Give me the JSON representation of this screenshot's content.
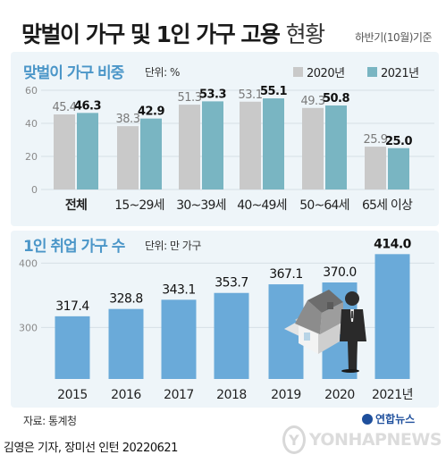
{
  "header": {
    "title_bold": "맞벌이 가구 및 1인 가구 고용",
    "title_light": "현황",
    "period_note": "하반기(10월)기준"
  },
  "section1": {
    "title": "맞벌이 가구 비중",
    "unit": "단위: %"
  },
  "section2": {
    "title": "1인 취업 가구 수",
    "unit": "단위: 만 가구"
  },
  "legend": {
    "items": [
      {
        "label": "2020년",
        "color": "#c9c9c9"
      },
      {
        "label": "2021년",
        "color": "#79b5c2"
      }
    ]
  },
  "footer": {
    "source": "자료: 통계청",
    "credit": "김영은 기자, 장미선 인턴  20220621",
    "logo_small": "연합뉴스",
    "watermark": "YONHAPNEWS"
  },
  "colors": {
    "series_2020": "#c9c9c9",
    "series_2021": "#79b5c2",
    "bar2": "#6aaad9",
    "accent_title": "#4b96c8"
  },
  "chart_data": [
    {
      "type": "bar",
      "title": "맞벌이 가구 비중",
      "unit": "%",
      "categories": [
        "전체",
        "15~29세",
        "30~39세",
        "40~49세",
        "50~64세",
        "65세 이상"
      ],
      "series": [
        {
          "name": "2020년",
          "values": [
            45.4,
            38.3,
            51.3,
            53.1,
            49.3,
            25.9
          ]
        },
        {
          "name": "2021년",
          "values": [
            46.3,
            42.9,
            53.3,
            55.1,
            50.8,
            25.0
          ]
        }
      ],
      "ylim": [
        0,
        60
      ],
      "yticks": [
        0,
        20,
        40,
        60
      ],
      "grid": true,
      "legend_position": "top-right"
    },
    {
      "type": "bar",
      "title": "1인 취업 가구 수",
      "unit": "만 가구",
      "categories": [
        "2015",
        "2016",
        "2017",
        "2018",
        "2019",
        "2020",
        "2021년"
      ],
      "values": [
        317.4,
        328.8,
        343.1,
        353.7,
        367.1,
        370.0,
        414.0
      ],
      "ylim": [
        220,
        420
      ],
      "yticks": [
        300,
        400
      ],
      "grid": true
    }
  ]
}
